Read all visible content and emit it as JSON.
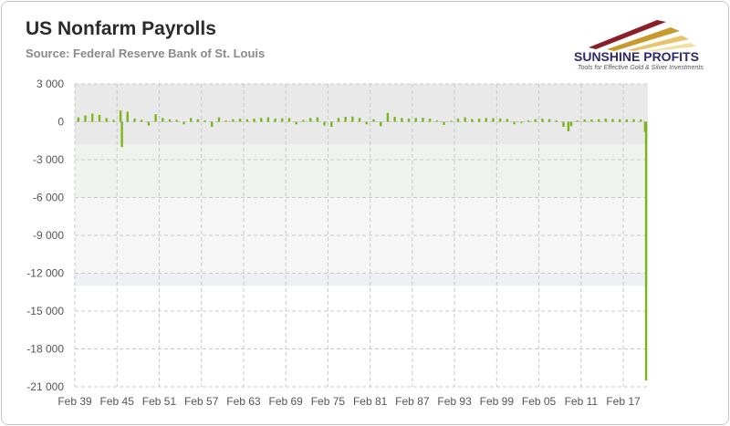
{
  "header": {
    "title": "US Nonfarm Payrolls",
    "subtitle": "Source: Federal Reserve Bank of St. Louis"
  },
  "logo": {
    "name": "SUNSHINE PROFITS",
    "tagline": "Tools for Effective Gold & Silver Investments"
  },
  "chart_data": {
    "type": "bar",
    "title": "US Nonfarm Payrolls",
    "xlabel": "",
    "ylabel": "",
    "ylim": [
      -21000,
      3000
    ],
    "xlim": [
      1939.0,
      2020.5
    ],
    "grid": true,
    "legend": "none",
    "yticks": [
      3000,
      0,
      -3000,
      -6000,
      -9000,
      -12000,
      -15000,
      -18000,
      -21000
    ],
    "ytick_labels": [
      "3 000",
      "0",
      "-3 000",
      "-6 000",
      "-9 000",
      "-12 000",
      "-15 000",
      "-18 000",
      "-21 000"
    ],
    "x_tick_labels": [
      "Feb 39",
      "Feb 45",
      "Feb 51",
      "Feb 57",
      "Feb 63",
      "Feb 69",
      "Feb 75",
      "Feb 81",
      "Feb 87",
      "Feb 93",
      "Feb 99",
      "Feb 05",
      "Feb 11",
      "Feb 17"
    ],
    "x_tick_years": [
      1939,
      1945,
      1951,
      1957,
      1963,
      1969,
      1975,
      1981,
      1987,
      1993,
      1999,
      2005,
      2011,
      2017
    ],
    "colors": {
      "bars": "#7cb518",
      "grid": "#c8c8c8"
    },
    "series": [
      {
        "x": [
          1939.5,
          1940.5,
          1941.5,
          1942.5,
          1943.5,
          1944.5,
          1945.5,
          1945.7,
          1946.5,
          1947.5,
          1948.5,
          1949.5,
          1950.5,
          1951.5,
          1952.5,
          1953.5,
          1954.5,
          1955.5,
          1956.5,
          1957.5,
          1958.5,
          1959.5,
          1960.5,
          1961.5,
          1962.5,
          1963.5,
          1964.5,
          1965.5,
          1966.5,
          1967.5,
          1968.5,
          1969.5,
          1970.5,
          1971.5,
          1972.5,
          1973.5,
          1974.5,
          1975.5,
          1976.5,
          1977.5,
          1978.5,
          1979.5,
          1980.5,
          1981.5,
          1982.5,
          1983.5,
          1984.5,
          1985.5,
          1986.5,
          1987.5,
          1988.5,
          1989.5,
          1990.5,
          1991.5,
          1992.5,
          1993.5,
          1994.5,
          1995.5,
          1996.5,
          1997.5,
          1998.5,
          1999.5,
          2000.5,
          2001.5,
          2002.5,
          2003.5,
          2004.5,
          2005.5,
          2006.5,
          2007.5,
          2008.5,
          2009.2,
          2009.6,
          2010.5,
          2011.5,
          2012.5,
          2013.5,
          2014.5,
          2015.5,
          2016.5,
          2017.5,
          2018.5,
          2019.5,
          2020.1,
          2020.25
        ],
        "values": [
          350,
          500,
          650,
          550,
          300,
          150,
          900,
          -2000,
          800,
          250,
          150,
          -300,
          600,
          300,
          200,
          150,
          -200,
          300,
          200,
          100,
          -400,
          350,
          100,
          200,
          250,
          200,
          250,
          300,
          350,
          250,
          280,
          300,
          -200,
          150,
          300,
          350,
          -300,
          -400,
          300,
          400,
          420,
          300,
          -200,
          200,
          -350,
          700,
          400,
          300,
          250,
          300,
          320,
          250,
          100,
          -250,
          80,
          250,
          350,
          220,
          250,
          300,
          280,
          260,
          220,
          -200,
          -100,
          100,
          200,
          250,
          200,
          100,
          -400,
          -750,
          -350,
          100,
          180,
          180,
          200,
          250,
          220,
          200,
          180,
          200,
          180,
          -800,
          -20500
        ]
      }
    ]
  }
}
